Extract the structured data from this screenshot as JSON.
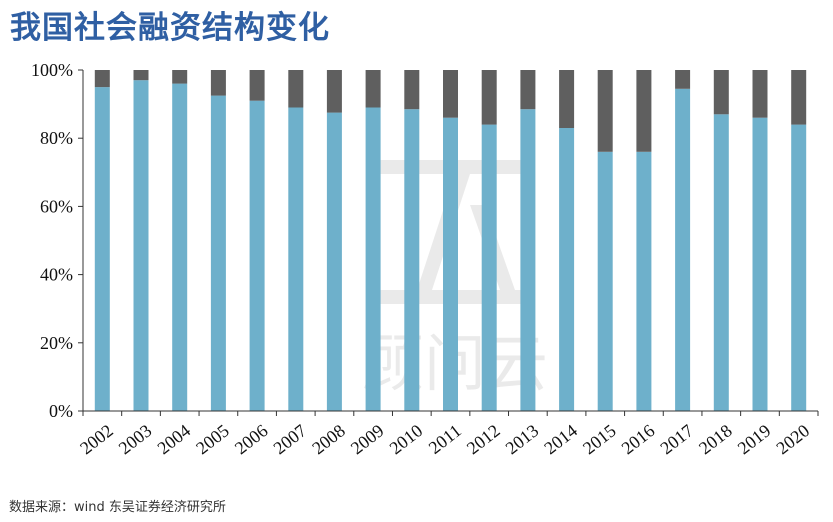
{
  "title": "我国社会融资结构变化",
  "source": "数据来源：wind 东吴证券经济研究所",
  "watermark": {
    "logo_text": "顾问云"
  },
  "colors": {
    "primary": "#6eb0cb",
    "secondary": "#5f5f5f",
    "axis": "#333333",
    "title": "#2f5fa3"
  },
  "chart_data": {
    "type": "bar",
    "stacked": true,
    "categories": [
      "2002",
      "2003",
      "2004",
      "2005",
      "2006",
      "2007",
      "2008",
      "2009",
      "2010",
      "2011",
      "2012",
      "2013",
      "2014",
      "2015",
      "2016",
      "2017",
      "2018",
      "2019",
      "2020"
    ],
    "series": [
      {
        "values": [
          95,
          97,
          96,
          92.5,
          91,
          89,
          87.5,
          89,
          88.5,
          86,
          84,
          88.5,
          83,
          76,
          76,
          94.5,
          87,
          86,
          84
        ]
      },
      {
        "values": [
          5,
          3,
          4,
          7.5,
          9,
          11,
          12.5,
          11,
          11.5,
          14,
          16,
          11.5,
          17,
          24,
          24,
          5.5,
          13,
          14,
          16
        ]
      }
    ],
    "y_ticks": [
      "0%",
      "20%",
      "40%",
      "60%",
      "80%",
      "100%"
    ],
    "ylim": [
      0,
      100
    ],
    "grid": false,
    "legend": "none"
  }
}
